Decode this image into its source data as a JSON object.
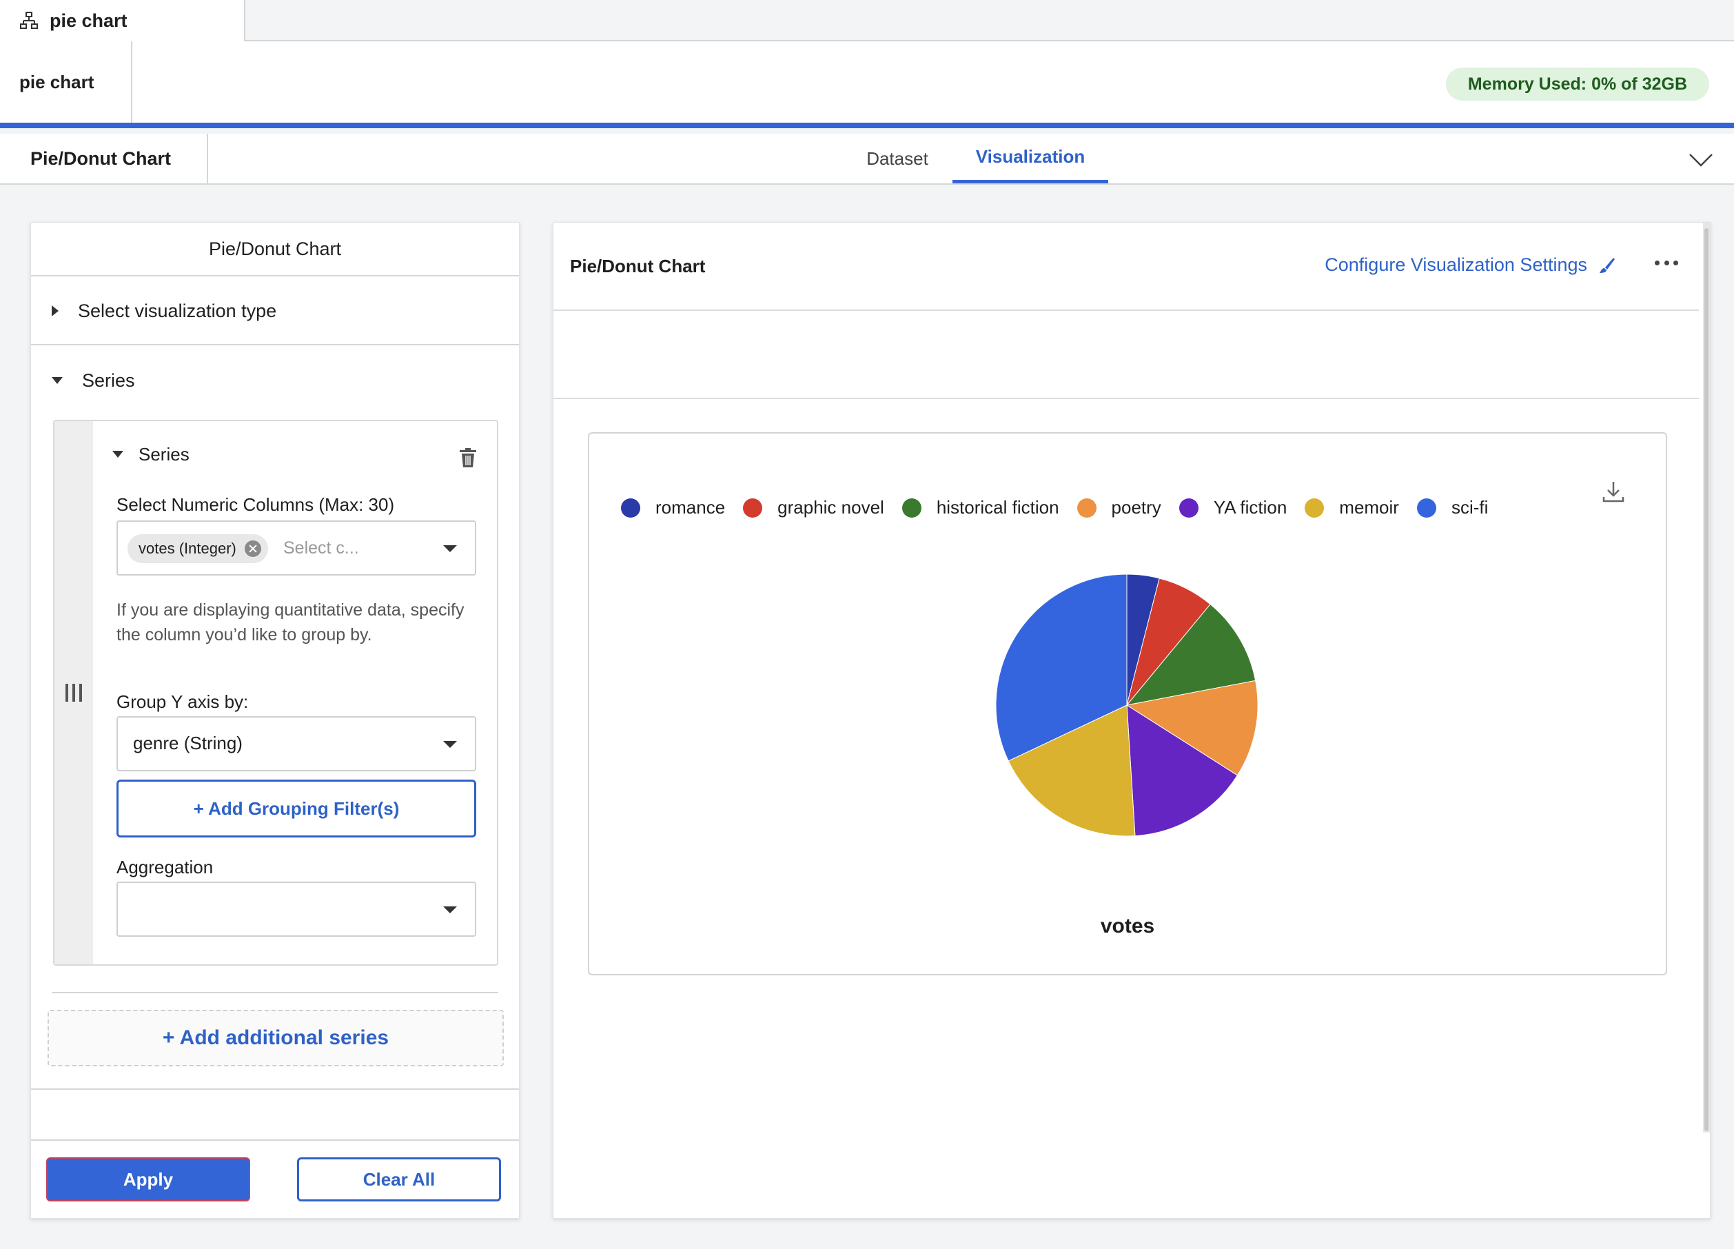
{
  "top_tab": {
    "label": "pie chart",
    "icon": "network-icon"
  },
  "header": {
    "title": "pie chart",
    "memory": "Memory Used: 0% of 32GB"
  },
  "nav": {
    "title": "Pie/Donut Chart",
    "tabs": [
      {
        "label": "Dataset"
      },
      {
        "label": "Visualization",
        "active": true
      }
    ]
  },
  "left_panel": {
    "title": "Pie/Donut Chart",
    "section_vis_type": "Select visualization type",
    "section_series": "Series",
    "series": {
      "title": "Series",
      "numeric_label": "Select Numeric Columns (Max: 30)",
      "chip": "votes (Integer)",
      "numeric_placeholder": "Select c...",
      "help": "If you are displaying quantitative data, specify the column you’d like to group by.",
      "group_label": "Group Y axis by:",
      "group_value": "genre (String)",
      "add_grouping": "+ Add Grouping Filter(s)",
      "agg_label": "Aggregation",
      "agg_value": ""
    },
    "add_series": "+ Add additional series",
    "apply": "Apply",
    "clear": "Clear All"
  },
  "right_panel": {
    "title": "Pie/Donut Chart",
    "config_link": "Configure Visualization Settings"
  },
  "colors": {
    "accent": "#3465d6",
    "memory_bg": "#dff3df"
  },
  "chart_data": {
    "type": "pie",
    "categories": [
      "romance",
      "graphic novel",
      "historical fiction",
      "poetry",
      "YA fiction",
      "memoir",
      "sci-fi"
    ],
    "values": [
      4,
      7,
      11,
      12,
      15,
      19,
      32
    ],
    "colors": [
      "#2a3aa8",
      "#d33b2c",
      "#3b7a2e",
      "#ec9240",
      "#6425c2",
      "#dab230",
      "#3465de"
    ],
    "xlabel": "votes",
    "legend": "top"
  }
}
